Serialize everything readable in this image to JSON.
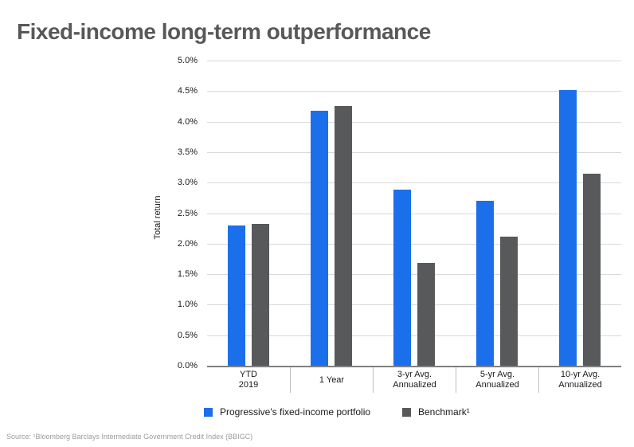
{
  "title": "Fixed-income long-term outperformance",
  "source": "Source: ¹Bloomberg Barclays Intermediate Government Credit Index (BBIGC)",
  "colors": {
    "portfolio_blue": "#1B6FEB",
    "benchmark_gray": "#58595B",
    "title_gray": "#57585A",
    "gridline": "#D9D9D9",
    "axis_line": "#808080",
    "separator": "#BFBFBF",
    "source_text": "#9B9B9B"
  },
  "chart_data": {
    "type": "bar",
    "title": "Fixed-income long-term outperformance",
    "xlabel": "",
    "ylabel": "Total return",
    "ylim": [
      0,
      5
    ],
    "ytick_step": 0.5,
    "grid": true,
    "legend_position": "bottom",
    "yticks": [
      "0.0%",
      "0.5%",
      "1.0%",
      "1.5%",
      "2.0%",
      "2.5%",
      "3.0%",
      "3.5%",
      "4.0%",
      "4.5%",
      "5.0%"
    ],
    "categories": [
      "YTD\n2019",
      "1 Year",
      "3-yr Avg.\nAnnualized",
      "5-yr Avg.\nAnnualized",
      "10-yr Avg.\nAnnualized"
    ],
    "series": [
      {
        "name": "Progressive's fixed-income portfolio",
        "color": "#1B6FEB",
        "values": [
          2.3,
          4.18,
          2.88,
          2.7,
          4.52
        ]
      },
      {
        "name": "Benchmark¹",
        "color": "#58595B",
        "values": [
          2.32,
          4.25,
          1.68,
          2.12,
          3.14
        ]
      }
    ]
  }
}
